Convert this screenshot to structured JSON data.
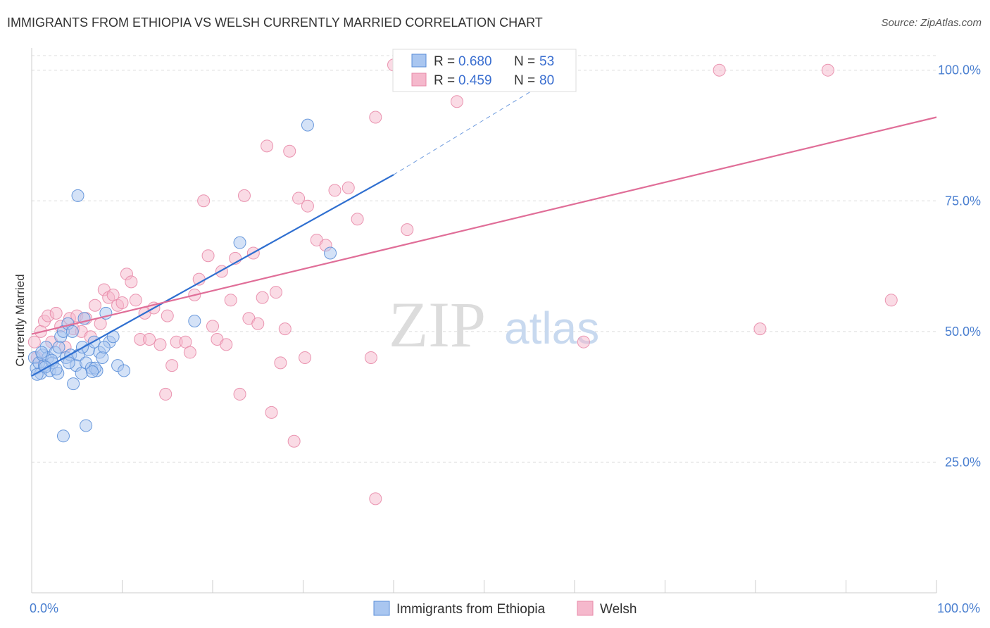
{
  "title": "IMMIGRANTS FROM ETHIOPIA VS WELSH CURRENTLY MARRIED CORRELATION CHART",
  "source": "Source: ZipAtlas.com",
  "watermark": {
    "zip": "ZIP",
    "atlas": "atlas"
  },
  "colors": {
    "blue_fill": "#a9c6f0",
    "blue_stroke": "#5b8fd8",
    "blue_line": "#2f6fd0",
    "pink_fill": "#f5b8cc",
    "pink_stroke": "#e88aa8",
    "pink_line": "#e06e98",
    "grid": "#dcdcdc",
    "tick_label": "#4a7fd0"
  },
  "chart_data": {
    "type": "scatter",
    "title": "IMMIGRANTS FROM ETHIOPIA VS WELSH CURRENTLY MARRIED CORRELATION CHART",
    "xlabel": "",
    "ylabel": "Currently Married",
    "xlim": [
      0,
      100
    ],
    "ylim": [
      0,
      104
    ],
    "x_tick_labels": [
      "0.0%",
      "100.0%"
    ],
    "y_ticks": [
      25,
      50,
      75,
      100
    ],
    "y_tick_labels": [
      "25.0%",
      "50.0%",
      "75.0%",
      "100.0%"
    ],
    "legend_position": "top-center",
    "legend": [
      {
        "name": "Immigrants from Ethiopia",
        "r_label": "R =",
        "r": "0.680",
        "n_label": "N =",
        "n": "53"
      },
      {
        "name": "Welsh",
        "r_label": "R =",
        "r": "0.459",
        "n_label": "N =",
        "n": "80"
      }
    ],
    "series": [
      {
        "name": "Immigrants from Ethiopia",
        "trend": {
          "x0": 0,
          "y0": 41.5,
          "x1": 40,
          "y1": 80.0,
          "dash_x1": 60,
          "dash_y1": 101
        },
        "points": [
          [
            0.3,
            45
          ],
          [
            0.5,
            43
          ],
          [
            0.8,
            44
          ],
          [
            1.0,
            42
          ],
          [
            1.2,
            45.5
          ],
          [
            1.4,
            43.5
          ],
          [
            1.6,
            47
          ],
          [
            1.8,
            45
          ],
          [
            2.0,
            42.5
          ],
          [
            2.3,
            44
          ],
          [
            2.6,
            46
          ],
          [
            2.9,
            42
          ],
          [
            3.2,
            49
          ],
          [
            3.5,
            50
          ],
          [
            3.8,
            45
          ],
          [
            4.0,
            51.5
          ],
          [
            4.3,
            45.5
          ],
          [
            4.6,
            40
          ],
          [
            4.9,
            43.5
          ],
          [
            5.2,
            45.5
          ],
          [
            5.5,
            42
          ],
          [
            5.8,
            52.5
          ],
          [
            6.0,
            44
          ],
          [
            6.3,
            46.5
          ],
          [
            6.6,
            43
          ],
          [
            6.9,
            48
          ],
          [
            7.2,
            42.5
          ],
          [
            7.5,
            46
          ],
          [
            7.8,
            45
          ],
          [
            8.2,
            53.5
          ],
          [
            8.6,
            48
          ],
          [
            9.0,
            49
          ],
          [
            9.5,
            43.5
          ],
          [
            10.2,
            42.5
          ],
          [
            3.5,
            30
          ],
          [
            6.0,
            32
          ],
          [
            5.1,
            76
          ],
          [
            18.0,
            52
          ],
          [
            23.0,
            67
          ],
          [
            30.5,
            89.5
          ],
          [
            33.0,
            65
          ],
          [
            1.1,
            46
          ],
          [
            2.2,
            44.5
          ],
          [
            3.0,
            47
          ],
          [
            4.5,
            50
          ],
          [
            5.6,
            47
          ],
          [
            7.0,
            43
          ],
          [
            0.6,
            41.8
          ],
          [
            1.5,
            43.2
          ],
          [
            2.7,
            42.8
          ],
          [
            4.1,
            44
          ],
          [
            6.7,
            42.3
          ],
          [
            8.0,
            47
          ]
        ]
      },
      {
        "name": "Welsh",
        "trend": {
          "x0": 0,
          "y0": 49.5,
          "x1": 100,
          "y1": 91.0
        },
        "points": [
          [
            0.3,
            48
          ],
          [
            0.6,
            45
          ],
          [
            1.0,
            50
          ],
          [
            1.4,
            52
          ],
          [
            1.8,
            53
          ],
          [
            2.2,
            48
          ],
          [
            2.7,
            53.5
          ],
          [
            3.2,
            51
          ],
          [
            3.7,
            47
          ],
          [
            4.2,
            52.5
          ],
          [
            4.6,
            50.5
          ],
          [
            5.0,
            53
          ],
          [
            5.5,
            50
          ],
          [
            6.0,
            52.5
          ],
          [
            6.5,
            49
          ],
          [
            7.0,
            55
          ],
          [
            7.6,
            51.5
          ],
          [
            8.0,
            58
          ],
          [
            8.5,
            56.5
          ],
          [
            9.0,
            57
          ],
          [
            9.5,
            55
          ],
          [
            10.0,
            55.5
          ],
          [
            10.5,
            61
          ],
          [
            11.0,
            59.5
          ],
          [
            11.5,
            56
          ],
          [
            12.0,
            48.5
          ],
          [
            12.5,
            53.5
          ],
          [
            13.0,
            48.5
          ],
          [
            13.5,
            54.5
          ],
          [
            14.2,
            47.5
          ],
          [
            14.8,
            38
          ],
          [
            15.0,
            53
          ],
          [
            15.5,
            43.5
          ],
          [
            16.0,
            48
          ],
          [
            17.0,
            48
          ],
          [
            17.5,
            46
          ],
          [
            18.0,
            57
          ],
          [
            18.5,
            60
          ],
          [
            19.0,
            75
          ],
          [
            19.5,
            64.5
          ],
          [
            20.0,
            51
          ],
          [
            20.5,
            48.5
          ],
          [
            21.0,
            61.5
          ],
          [
            21.5,
            47.5
          ],
          [
            22.0,
            56
          ],
          [
            22.5,
            64
          ],
          [
            23.0,
            38
          ],
          [
            23.5,
            76
          ],
          [
            24.0,
            52.5
          ],
          [
            24.5,
            65
          ],
          [
            25.0,
            51.5
          ],
          [
            25.5,
            56.5
          ],
          [
            26.0,
            85.5
          ],
          [
            26.5,
            34.5
          ],
          [
            27.0,
            57.5
          ],
          [
            27.5,
            44
          ],
          [
            28.0,
            50.5
          ],
          [
            28.5,
            84.5
          ],
          [
            29.0,
            29
          ],
          [
            29.5,
            75.5
          ],
          [
            30.5,
            74
          ],
          [
            31.5,
            67.5
          ],
          [
            32.5,
            66.5
          ],
          [
            33.5,
            77
          ],
          [
            35.0,
            77.5
          ],
          [
            36.0,
            71.5
          ],
          [
            38.0,
            91
          ],
          [
            40.0,
            101
          ],
          [
            41.5,
            69.5
          ],
          [
            43.0,
            100
          ],
          [
            47.0,
            94
          ],
          [
            54.5,
            101
          ],
          [
            76.0,
            100
          ],
          [
            80.5,
            50.5
          ],
          [
            88.0,
            100
          ],
          [
            95.0,
            56
          ],
          [
            38.0,
            18
          ],
          [
            30.2,
            45
          ],
          [
            37.5,
            45
          ],
          [
            61.0,
            48
          ]
        ]
      }
    ]
  }
}
